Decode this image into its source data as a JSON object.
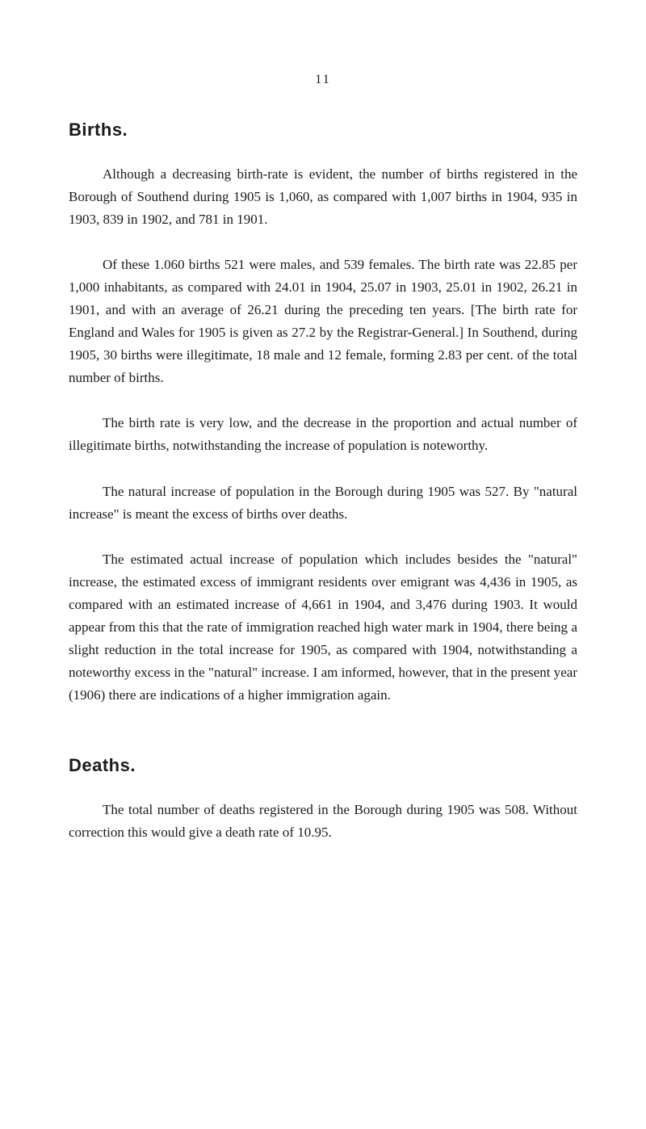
{
  "page_number": "11",
  "sections": {
    "births": {
      "heading": "Births.",
      "paragraphs": [
        "Although a decreasing birth-rate is evident, the number of births registered in the Borough of Southend during 1905 is 1,060, as compared with 1,007 births in 1904, 935 in 1903, 839 in 1902, and 781 in 1901.",
        "Of these 1.060 births 521 were males, and 539 females. The birth rate was 22.85 per 1,000 inhabitants, as compared with 24.01 in 1904, 25.07 in 1903, 25.01 in 1902, 26.21 in 1901, and with an average of 26.21 during the preceding ten years. [The birth rate for England and Wales for 1905 is given as 27.2 by the Registrar-General.] In Southend, during 1905, 30 births were illegitimate, 18 male and 12 female, forming 2.83 per cent. of the total number of births.",
        "The birth rate is very low, and the decrease in the proportion and actual number of illegitimate births, notwithstanding the increase of population is noteworthy.",
        "The natural increase of population in the Borough during 1905 was 527. By \"natural increase\" is meant the excess of births over deaths.",
        "The estimated actual increase of population which includes besides the \"natural\" increase, the estimated excess of immigrant residents over emigrant was 4,436 in 1905, as compared with an estimated increase of 4,661 in 1904, and 3,476 during 1903. It would appear from this that the rate of immigration reached high water mark in 1904, there being a slight reduction in the total increase for 1905, as compared with 1904, notwithstanding a noteworthy excess in the \"natural\" increase. I am informed, however, that in the present year (1906) there are indications of a higher immigration again."
      ]
    },
    "deaths": {
      "heading": "Deaths.",
      "paragraphs": [
        "The total number of deaths registered in the Borough during 1905 was 508. Without correction this would give a death rate of 10.95."
      ]
    }
  }
}
